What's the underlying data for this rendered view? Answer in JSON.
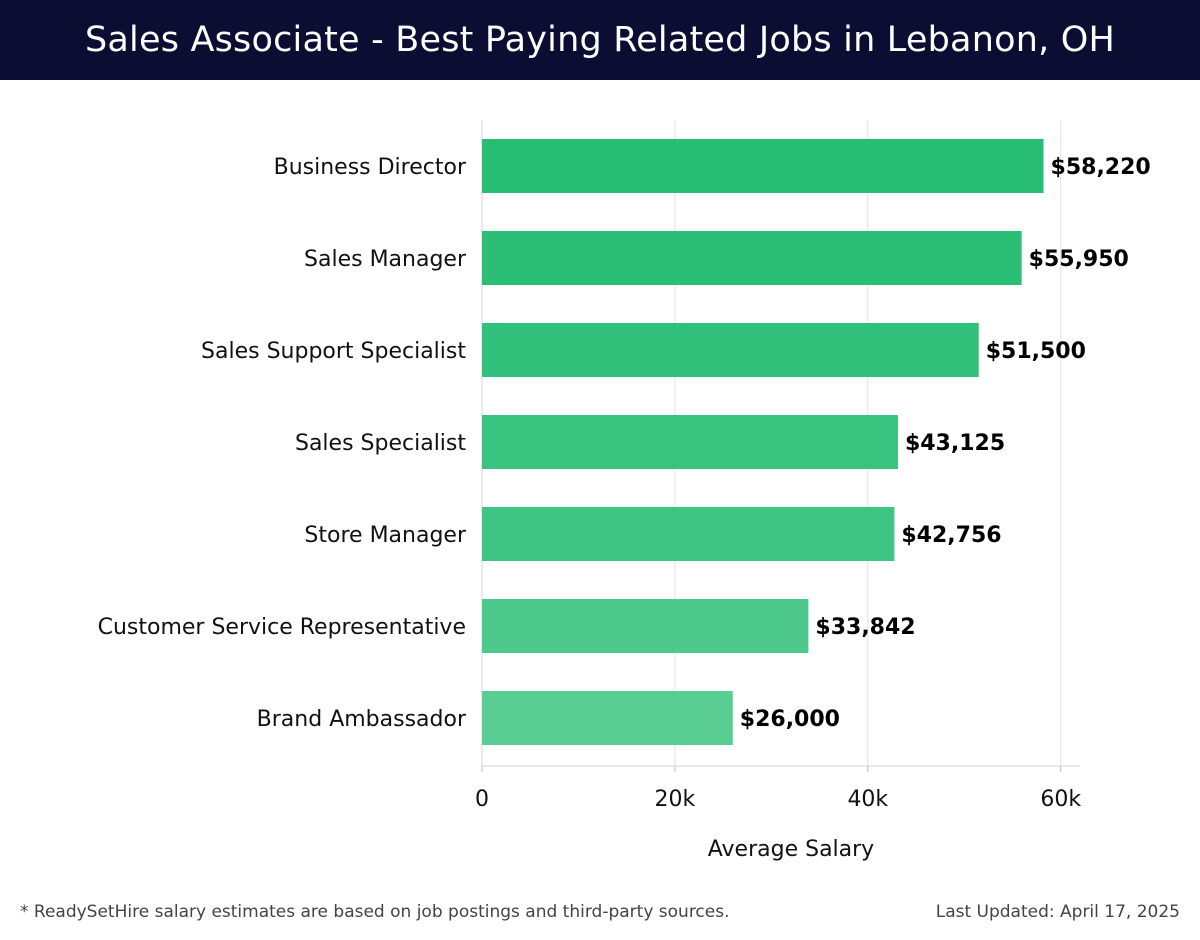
{
  "header": {
    "title": "Sales Associate - Best Paying Related Jobs in Lebanon, OH",
    "background": "#0b0d33"
  },
  "chart_data": {
    "type": "bar",
    "orientation": "horizontal",
    "title": "Sales Associate - Best Paying Related Jobs in Lebanon, OH",
    "categories": [
      "Business Director",
      "Sales Manager",
      "Sales Support Specialist",
      "Sales Specialist",
      "Store Manager",
      "Customer Service Representative",
      "Brand Ambassador"
    ],
    "values": [
      58220,
      55950,
      51500,
      43125,
      42756,
      33842,
      26000
    ],
    "value_labels": [
      "$58,220",
      "$55,950",
      "$51,500",
      "$43,125",
      "$42,756",
      "$33,842",
      "$26,000"
    ],
    "bar_colors": [
      "#27bd72",
      "#2bbf76",
      "#31c17a",
      "#3ac37f",
      "#3fc583",
      "#4cc98b",
      "#5acd94"
    ],
    "xlabel": "Average Salary",
    "ylabel": "",
    "xlim": [
      0,
      62000
    ],
    "x_ticks": [
      0,
      20000,
      40000,
      60000
    ],
    "x_tick_labels": [
      "0",
      "20k",
      "40k",
      "60k"
    ],
    "grid": true
  },
  "footer": {
    "note": "* ReadySetHire salary estimates are based on job postings and third-party sources.",
    "updated": "Last Updated: April 17, 2025"
  }
}
